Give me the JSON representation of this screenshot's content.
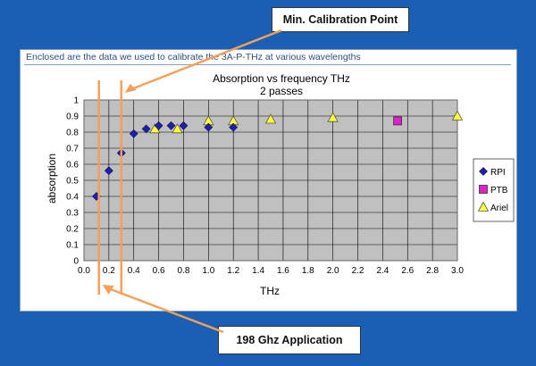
{
  "callouts": {
    "top": "Min. Calibration  Point",
    "bottom": "198 Ghz Application"
  },
  "caption": "Enclosed are the data we used to calibrate the 3A-P-THz at various wavelengths",
  "colors": {
    "background": "#1a5fb4",
    "plot_area": "#c0c0c0",
    "rpi": "#1f1fa8",
    "ptb": "#e020c8",
    "ariel": "#ffff33",
    "annotation_line": "#f4a05a"
  },
  "chart_data": {
    "type": "scatter",
    "title": "Absorption vs frequency THz",
    "subtitle": "2 passes",
    "xlabel": "THz",
    "ylabel": "absorption",
    "xlim": [
      0,
      3.0
    ],
    "ylim": [
      0,
      1
    ],
    "x_ticks": [
      "0.0",
      "0.2",
      "0.4",
      "0.6",
      "0.8",
      "1.0",
      "1.2",
      "1.4",
      "1.6",
      "1.8",
      "2.0",
      "2.2",
      "2.4",
      "2.6",
      "2.8",
      "3.0"
    ],
    "y_ticks": [
      "0",
      "0.1",
      "0.2",
      "0.3",
      "0.4",
      "0.5",
      "0.6",
      "0.7",
      "0.8",
      "0.9",
      "1"
    ],
    "grid": true,
    "legend_position": "right",
    "series": [
      {
        "name": "RPI",
        "marker": "diamond",
        "color": "#1f1fa8",
        "points": [
          [
            0.1,
            0.4
          ],
          [
            0.2,
            0.56
          ],
          [
            0.3,
            0.67
          ],
          [
            0.4,
            0.79
          ],
          [
            0.5,
            0.82
          ],
          [
            0.6,
            0.84
          ],
          [
            0.7,
            0.84
          ],
          [
            0.8,
            0.84
          ],
          [
            1.0,
            0.83
          ],
          [
            1.2,
            0.83
          ]
        ]
      },
      {
        "name": "PTB",
        "marker": "square",
        "color": "#e020c8",
        "points": [
          [
            2.52,
            0.87
          ]
        ]
      },
      {
        "name": "Ariel",
        "marker": "triangle",
        "color": "#ffff33",
        "points": [
          [
            0.57,
            0.82
          ],
          [
            0.75,
            0.82
          ],
          [
            1.0,
            0.87
          ],
          [
            1.2,
            0.87
          ],
          [
            1.5,
            0.88
          ],
          [
            2.0,
            0.89
          ],
          [
            3.0,
            0.9
          ]
        ]
      }
    ],
    "annotation_lines": {
      "x_values": [
        0.12,
        0.3
      ]
    }
  }
}
